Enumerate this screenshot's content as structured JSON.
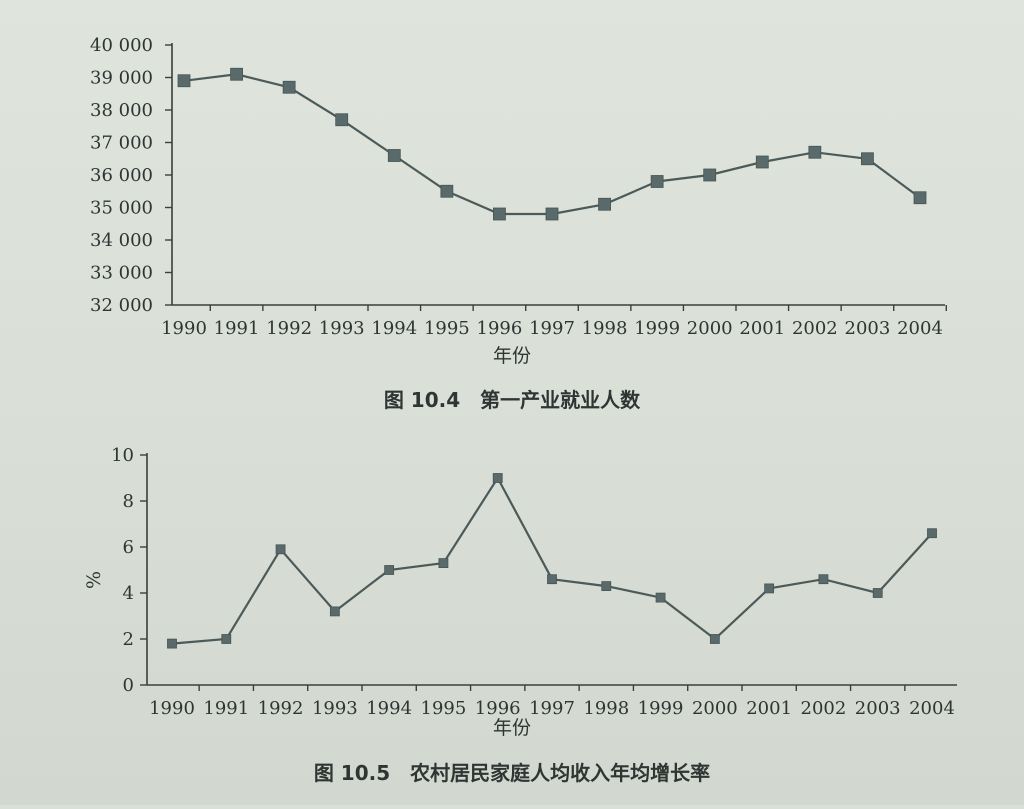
{
  "chart_data": [
    {
      "type": "line",
      "title": "图 10.4　第一产业就业人数",
      "xlabel": "年份",
      "ylabel": "",
      "x": [
        "1990",
        "1991",
        "1992",
        "1993",
        "1994",
        "1995",
        "1996",
        "1997",
        "1998",
        "1999",
        "2000",
        "2001",
        "2002",
        "2003",
        "2004"
      ],
      "series": [
        {
          "values": [
            38900,
            39100,
            38700,
            37700,
            36600,
            35500,
            34800,
            34800,
            35100,
            35800,
            36000,
            36400,
            36700,
            36500,
            35300
          ]
        }
      ],
      "yticks": [
        "32 000",
        "33 000",
        "34 000",
        "35 000",
        "36 000",
        "37 000",
        "38 000",
        "39 000",
        "40 000"
      ],
      "ylim": [
        32000,
        40000
      ],
      "marker": "square",
      "grid": false,
      "line_color": "#4c5a5a"
    },
    {
      "type": "line",
      "title": "图 10.5　农村居民家庭人均收入年均增长率",
      "xlabel": "年份",
      "ylabel": "%",
      "x": [
        "1990",
        "1991",
        "1992",
        "1993",
        "1994",
        "1995",
        "1996",
        "1997",
        "1998",
        "1999",
        "2000",
        "2001",
        "2002",
        "2003",
        "2004"
      ],
      "series": [
        {
          "values": [
            1.8,
            2.0,
            5.9,
            3.2,
            5.0,
            5.3,
            9.0,
            4.6,
            4.3,
            3.8,
            2.0,
            4.2,
            4.6,
            4.0,
            6.6
          ]
        }
      ],
      "yticks": [
        "0",
        "2",
        "4",
        "6",
        "8",
        "10"
      ],
      "ylim": [
        0,
        10
      ],
      "marker": "small-square",
      "grid": false,
      "line_color": "#4c5a5a"
    }
  ]
}
